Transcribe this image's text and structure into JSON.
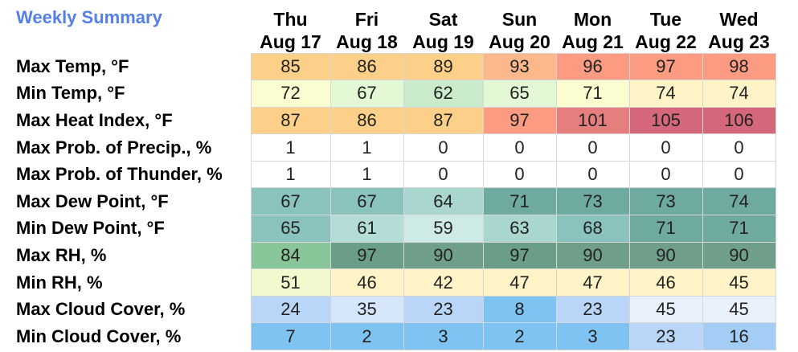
{
  "title": "Weekly Summary",
  "days": [
    {
      "name": "Thu",
      "date": "Aug 17"
    },
    {
      "name": "Fri",
      "date": "Aug 18"
    },
    {
      "name": "Sat",
      "date": "Aug 19"
    },
    {
      "name": "Sun",
      "date": "Aug 20"
    },
    {
      "name": "Mon",
      "date": "Aug 21"
    },
    {
      "name": "Tue",
      "date": "Aug 22"
    },
    {
      "name": "Wed",
      "date": "Aug 23"
    }
  ],
  "rows": [
    {
      "label": "Max Temp, °F",
      "values": [
        "85",
        "86",
        "89",
        "93",
        "96",
        "97",
        "98"
      ],
      "colors": [
        "#fcd088",
        "#fcd088",
        "#fcd088",
        "#fcb88a",
        "#fb9b82",
        "#fb9b82",
        "#fb9b82"
      ]
    },
    {
      "label": "Min Temp, °F",
      "values": [
        "72",
        "67",
        "62",
        "65",
        "71",
        "74",
        "74"
      ],
      "colors": [
        "#fbfdd0",
        "#e3f8d4",
        "#c9ebcb",
        "#e3f8d4",
        "#fbfdd0",
        "#fef4c8",
        "#fef4c8"
      ]
    },
    {
      "label": "Max Heat Index, °F",
      "values": [
        "87",
        "86",
        "87",
        "97",
        "101",
        "105",
        "106"
      ],
      "colors": [
        "#fcd088",
        "#fcd088",
        "#fcd088",
        "#fb9b82",
        "#e67e7e",
        "#d4687a",
        "#d4687a"
      ]
    },
    {
      "label": "Max Prob. of Precip., %",
      "values": [
        "1",
        "1",
        "0",
        "0",
        "0",
        "0",
        "0"
      ],
      "colors": [
        "#ffffff",
        "#ffffff",
        "#ffffff",
        "#ffffff",
        "#ffffff",
        "#ffffff",
        "#ffffff"
      ]
    },
    {
      "label": "Max Prob. of Thunder, %",
      "values": [
        "1",
        "1",
        "0",
        "0",
        "0",
        "0",
        "0"
      ],
      "colors": [
        "#ffffff",
        "#ffffff",
        "#ffffff",
        "#ffffff",
        "#ffffff",
        "#ffffff",
        "#ffffff"
      ]
    },
    {
      "label": "Max Dew Point, °F",
      "values": [
        "67",
        "67",
        "64",
        "71",
        "73",
        "73",
        "74"
      ],
      "colors": [
        "#8ac3bd",
        "#8ac3bd",
        "#a9d7cf",
        "#6faaa0",
        "#6faaa0",
        "#6faaa0",
        "#6faaa0"
      ]
    },
    {
      "label": "Min Dew Point, °F",
      "values": [
        "65",
        "61",
        "59",
        "63",
        "68",
        "71",
        "71"
      ],
      "colors": [
        "#8ac3bd",
        "#b3ddd6",
        "#cdeae6",
        "#a9d7cf",
        "#8ac3bd",
        "#6faaa0",
        "#6faaa0"
      ]
    },
    {
      "label": "Max RH, %",
      "values": [
        "84",
        "97",
        "90",
        "97",
        "90",
        "90",
        "90"
      ],
      "colors": [
        "#88c598",
        "#6a9e86",
        "#6f9f88",
        "#6a9e86",
        "#6f9f88",
        "#6f9f88",
        "#6f9f88"
      ]
    },
    {
      "label": "Min RH, %",
      "values": [
        "51",
        "46",
        "42",
        "47",
        "47",
        "46",
        "45"
      ],
      "colors": [
        "#f2f9cf",
        "#fff3c8",
        "#fff3c8",
        "#fff3c8",
        "#fff3c8",
        "#fff3c8",
        "#fff3c8"
      ]
    },
    {
      "label": "Max Cloud Cover, %",
      "values": [
        "24",
        "35",
        "23",
        "8",
        "23",
        "45",
        "45"
      ],
      "colors": [
        "#b9d6f8",
        "#d5e6fa",
        "#b9d6f8",
        "#7ec3f2",
        "#b9d6f8",
        "#e8f1fc",
        "#e8f1fc"
      ]
    },
    {
      "label": "Min Cloud Cover, %",
      "values": [
        "7",
        "2",
        "3",
        "2",
        "3",
        "23",
        "16"
      ],
      "colors": [
        "#7ec3f2",
        "#7ec3f2",
        "#7ec3f2",
        "#7ec3f2",
        "#7ec3f2",
        "#b9d6f8",
        "#a3cdf5"
      ]
    }
  ]
}
